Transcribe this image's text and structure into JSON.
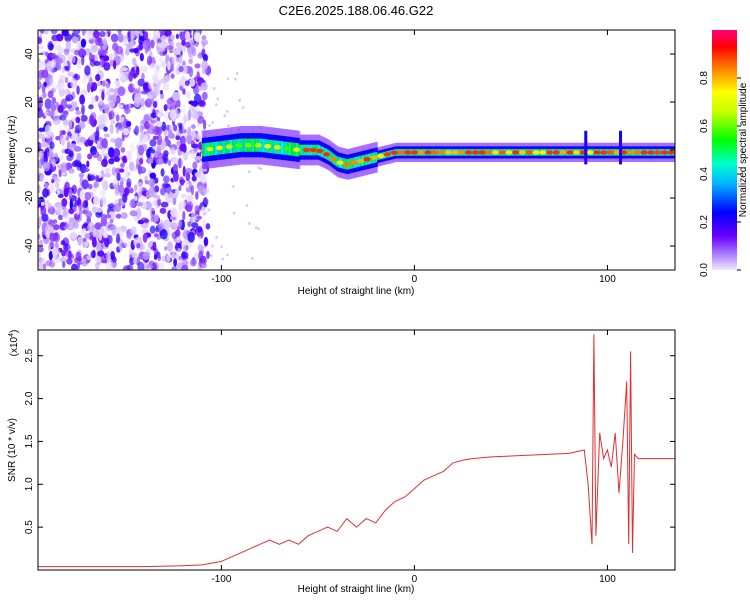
{
  "page_title": "C2E6.2025.188.06.46.G22",
  "chart_data": [
    {
      "type": "heatmap",
      "title": "C2E6.2025.188.06.46.G22",
      "xlabel": "Height of straight line (km)",
      "ylabel": "Frequency (Hz)",
      "xlim": [
        -195,
        135
      ],
      "ylim": [
        -50,
        50
      ],
      "x_ticks": [
        -100,
        0,
        100
      ],
      "x_tick_labels": [
        "-100",
        "0",
        "100"
      ],
      "y_ticks": [
        -40,
        -20,
        0,
        20,
        40
      ],
      "y_tick_labels": [
        "-40",
        "-20",
        "0",
        "20",
        "40"
      ],
      "grid": false,
      "colorbar": {
        "label": "Normalized spectral amplitude",
        "range": [
          0,
          1
        ],
        "ticks": [
          0,
          0.2,
          0.4,
          0.6,
          0.8
        ],
        "tick_labels": [
          "0.0",
          "0.2",
          "0.4",
          "0.6",
          "0.8"
        ],
        "colormap": [
          "#e6d9ff",
          "#6a00ff",
          "#0000ff",
          "#00ffff",
          "#00ff00",
          "#ffff00",
          "#ff8000",
          "#ff0000",
          "#ff0080"
        ]
      },
      "noise_region_x": [
        -195,
        -110
      ],
      "ridge_center_freq": [
        [
          -110,
          0
        ],
        [
          -100,
          1
        ],
        [
          -90,
          2
        ],
        [
          -80,
          2
        ],
        [
          -70,
          1
        ],
        [
          -60,
          0
        ],
        [
          -50,
          0
        ],
        [
          -45,
          -2
        ],
        [
          -40,
          -5
        ],
        [
          -35,
          -6
        ],
        [
          -30,
          -5
        ],
        [
          -25,
          -4
        ],
        [
          -20,
          -3
        ],
        [
          -15,
          -2
        ],
        [
          -10,
          -1
        ],
        [
          0,
          -1
        ],
        [
          20,
          -1
        ],
        [
          40,
          -1
        ],
        [
          60,
          -1
        ],
        [
          80,
          -1
        ],
        [
          90,
          -1
        ],
        [
          100,
          -1
        ],
        [
          110,
          -1
        ],
        [
          120,
          -1
        ],
        [
          135,
          -1
        ]
      ]
    },
    {
      "type": "line",
      "xlabel": "Height of straight line (km)",
      "ylabel": "SNR (10 * v/v)",
      "y_multiplier_label": "(x10",
      "y_multiplier_exp": "4",
      "y_multiplier_close": ")",
      "xlim": [
        -195,
        135
      ],
      "ylim": [
        0,
        2.8
      ],
      "x_ticks": [
        -100,
        0,
        100
      ],
      "x_tick_labels": [
        "-100",
        "0",
        "100"
      ],
      "y_ticks": [
        0.5,
        1.0,
        1.5,
        2.0,
        2.5
      ],
      "y_tick_labels": [
        "0.5",
        "1.0",
        "1.5",
        "2.0",
        "2.5"
      ],
      "line_color": "#e03030",
      "grid": false,
      "series": [
        {
          "x": [
            -195,
            -180,
            -160,
            -140,
            -120,
            -110,
            -100,
            -95,
            -90,
            -85,
            -80,
            -75,
            -70,
            -65,
            -60,
            -55,
            -50,
            -45,
            -40,
            -35,
            -30,
            -25,
            -20,
            -15,
            -10,
            -5,
            0,
            5,
            10,
            15,
            20,
            25,
            30,
            40,
            50,
            60,
            70,
            80,
            88,
            90,
            92,
            93,
            94,
            96,
            98,
            100,
            102,
            104,
            106,
            108,
            110,
            111,
            112,
            113,
            114,
            116,
            120,
            125,
            130,
            135
          ],
          "values": [
            0.04,
            0.04,
            0.04,
            0.04,
            0.05,
            0.06,
            0.1,
            0.15,
            0.2,
            0.25,
            0.3,
            0.35,
            0.3,
            0.35,
            0.3,
            0.4,
            0.45,
            0.5,
            0.45,
            0.6,
            0.5,
            0.6,
            0.55,
            0.7,
            0.8,
            0.85,
            0.95,
            1.05,
            1.1,
            1.15,
            1.25,
            1.28,
            1.3,
            1.32,
            1.33,
            1.34,
            1.35,
            1.36,
            1.4,
            1.0,
            0.3,
            2.75,
            0.4,
            1.6,
            1.3,
            1.4,
            1.2,
            1.6,
            0.9,
            1.5,
            2.2,
            0.3,
            2.55,
            0.2,
            1.35,
            1.3,
            1.3,
            1.3,
            1.3,
            1.3
          ]
        }
      ]
    }
  ]
}
